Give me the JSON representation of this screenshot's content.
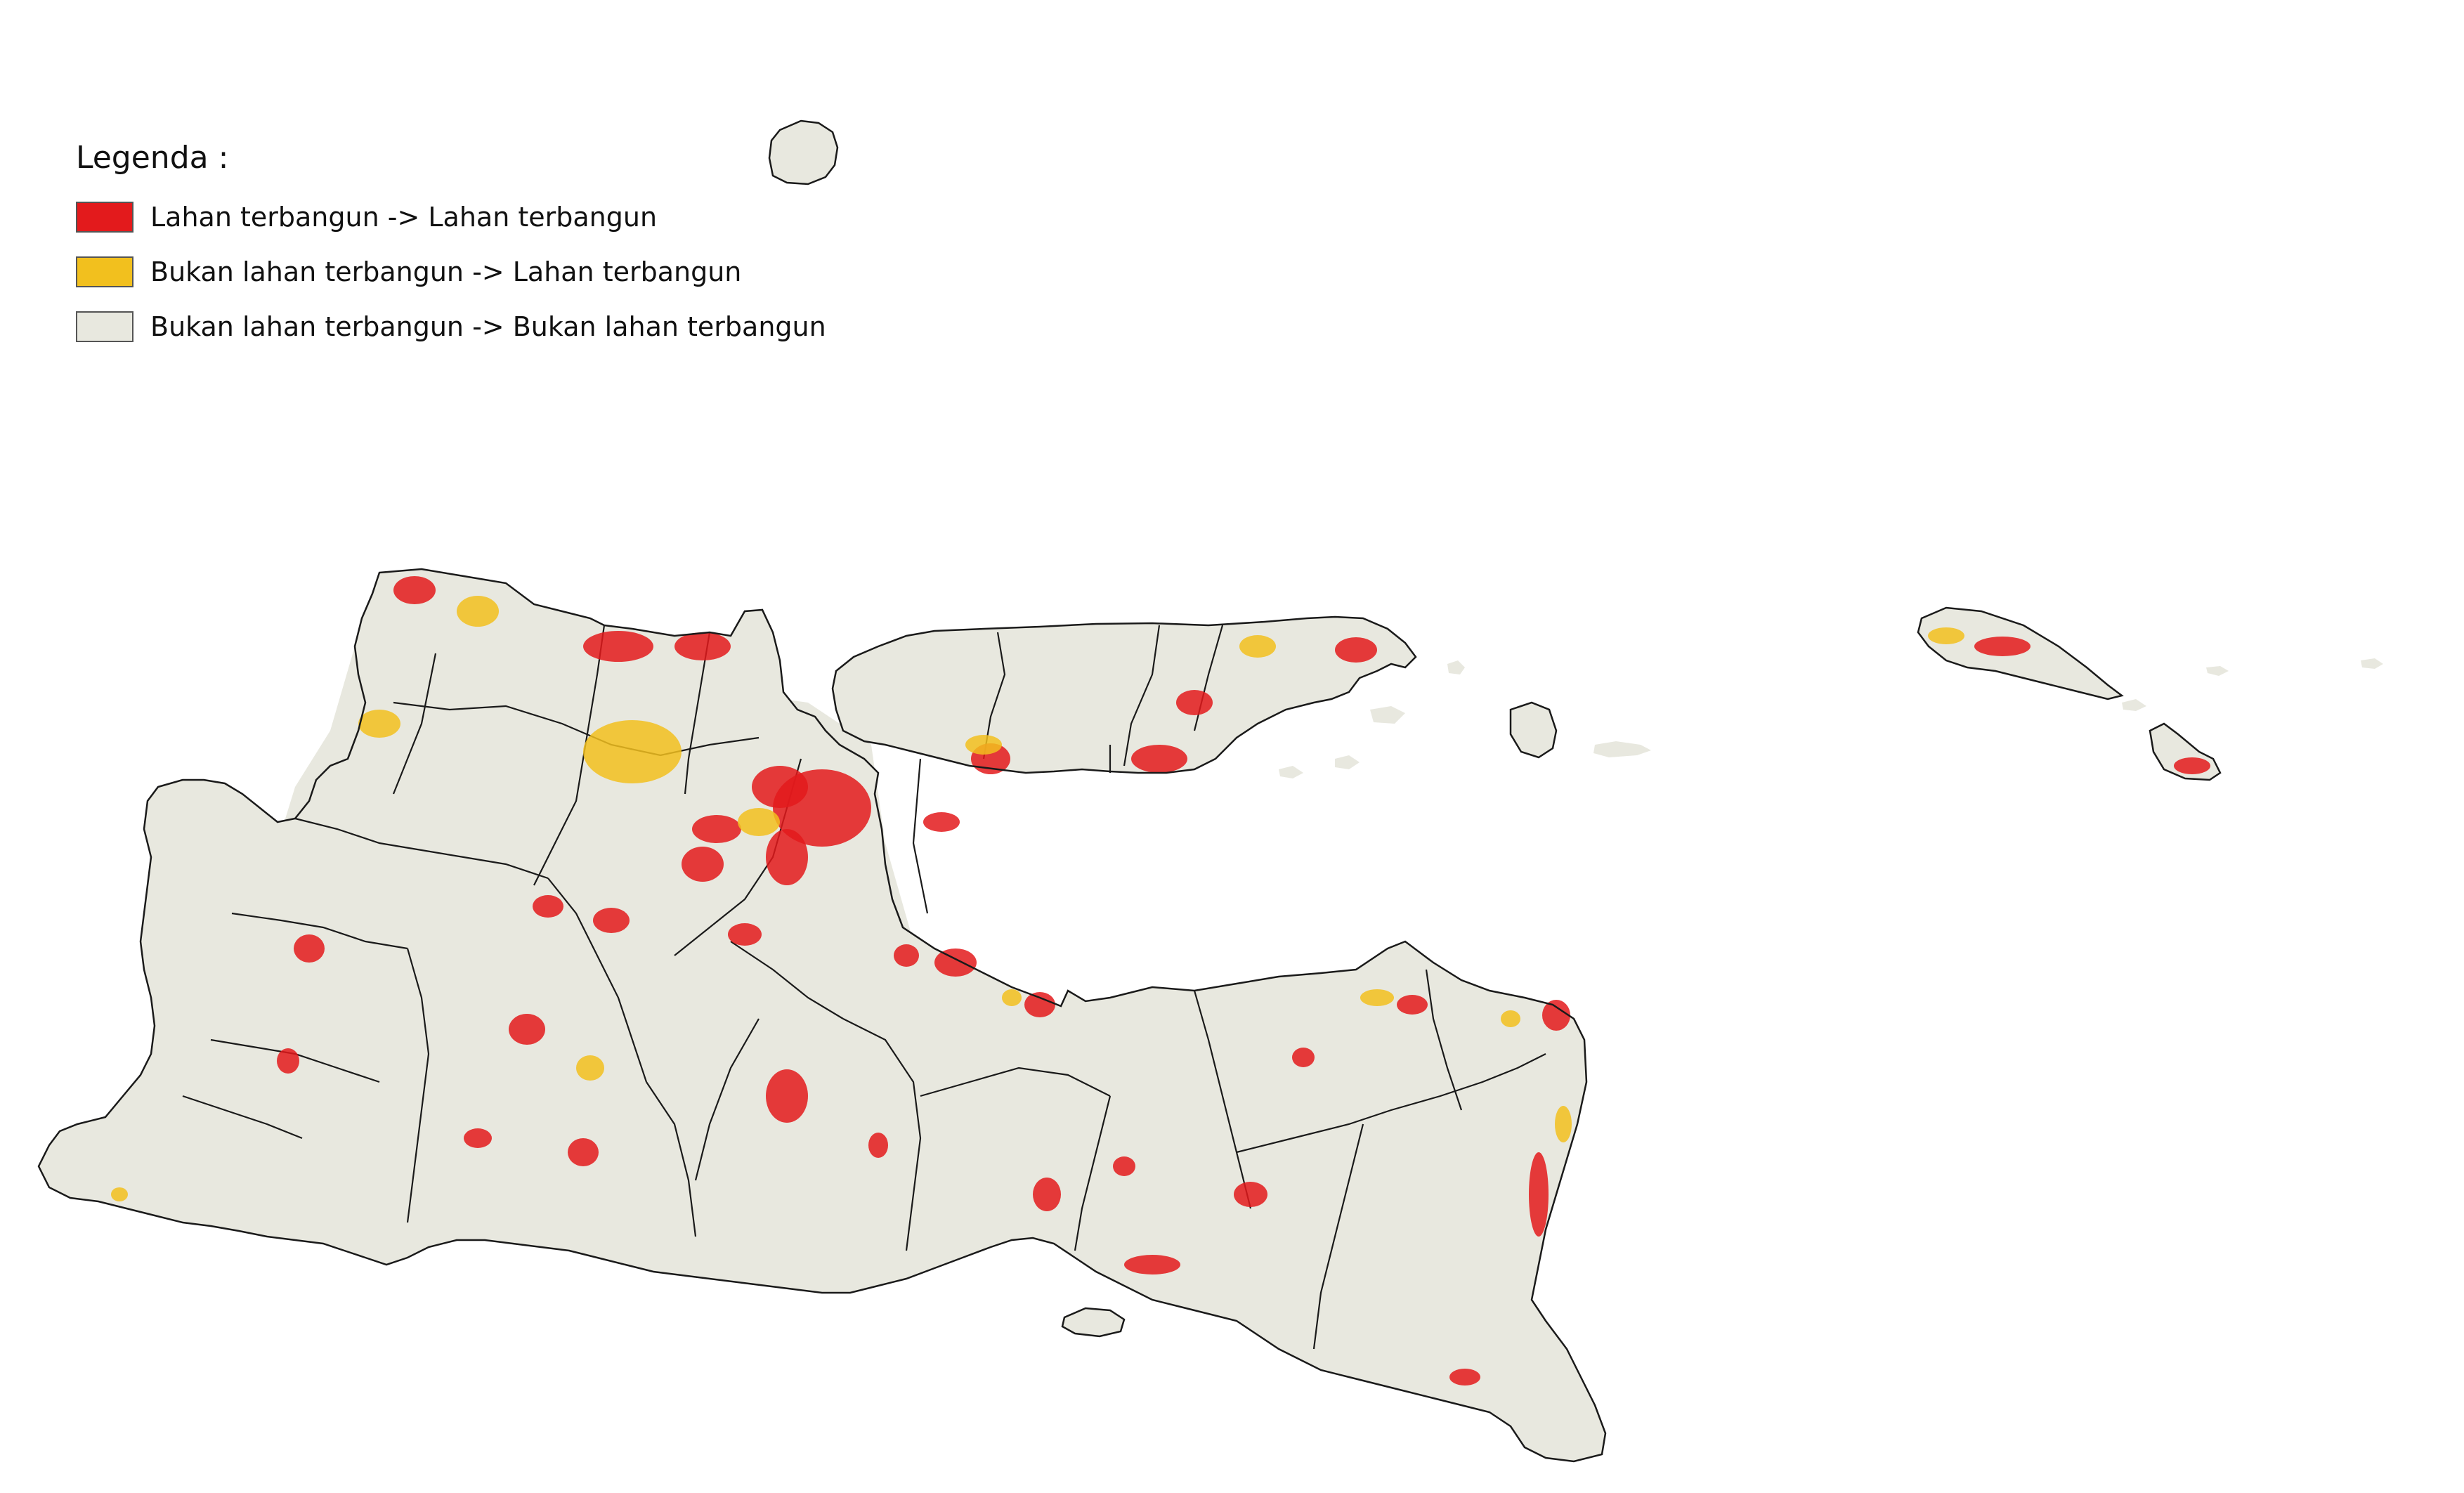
{
  "legend": {
    "title": "Legenda :",
    "items": [
      {
        "label": "Lahan terbangun -> Lahan terbangun",
        "color": "#e31a1c"
      },
      {
        "label": "Bukan lahan terbangun -> Lahan terbangun",
        "color": "#f2c01e"
      },
      {
        "label": "Bukan lahan terbangun -> Bukan lahan terbangun",
        "color": "#e8e8df"
      }
    ]
  },
  "map": {
    "boundary_color": "#1a1a1a",
    "land_color": "#e8e8df",
    "built_color": "#e31a1c",
    "new_built_color": "#f2c01e"
  }
}
